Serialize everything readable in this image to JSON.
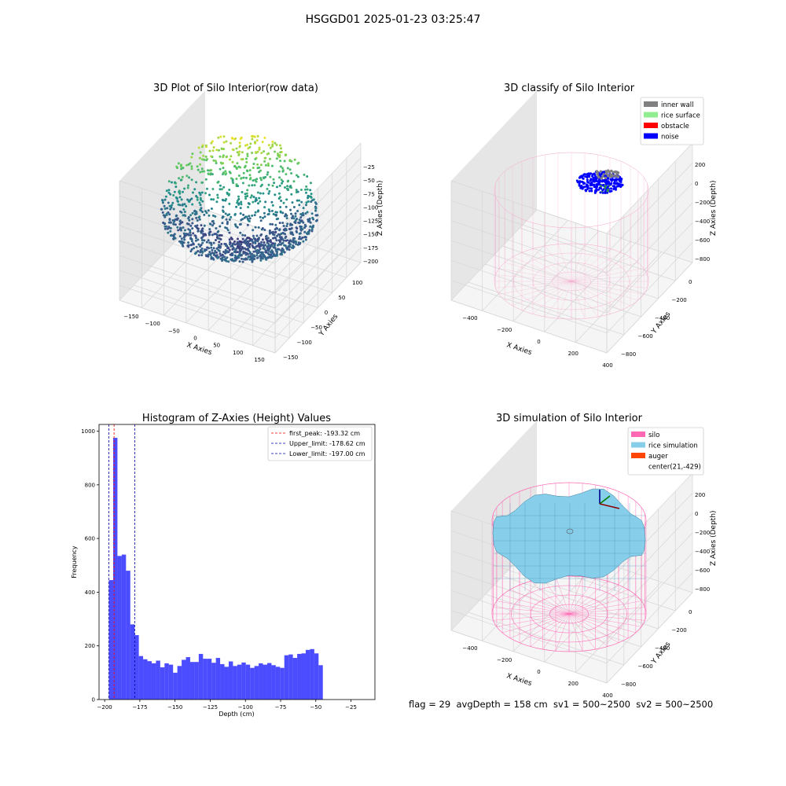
{
  "figure": {
    "suptitle": "HSGGD01 2025-01-23 03:25:47",
    "footer": "flag = 29  avgDepth = 158 cm  sv1 = 500~2500  sv2 = 500~2500"
  },
  "chart_data": [
    {
      "type": "scatter",
      "subtype": "3d-scatter",
      "title": "3D Plot of Silo Interior(row data)",
      "xlabel": "X Axies",
      "ylabel": "Y Axies",
      "zlabel": "Z Axies (Depth)",
      "xticks": [
        "−150",
        "−100",
        "−50",
        "0",
        "50",
        "100",
        "150"
      ],
      "yticks": [
        "−150",
        "−100",
        "−50",
        "0",
        "50",
        "100"
      ],
      "zticks": [
        "−25",
        "−50",
        "−75",
        "−100",
        "−125",
        "−150",
        "−175",
        "−200"
      ],
      "xlim": [
        -170,
        170
      ],
      "ylim": [
        -170,
        110
      ],
      "zlim": [
        -210,
        -15
      ],
      "colormap": "viridis"
    },
    {
      "type": "scatter",
      "subtype": "3d-classification",
      "title": "3D classify of Silo Interior",
      "xlabel": "X Axies",
      "ylabel": "Y Axies",
      "zlabel": "Z Axies (Depth)",
      "xticks": [
        "−400",
        "−200",
        "0",
        "200",
        "400"
      ],
      "yticks": [
        "0",
        "−200",
        "−400",
        "−600",
        "−800"
      ],
      "zticks": [
        "200",
        "0",
        "−200",
        "−400",
        "−600",
        "−800"
      ],
      "legend_position": "top-right",
      "legend": [
        {
          "label": "inner wall",
          "color": "#808080"
        },
        {
          "label": "rice surface",
          "color": "#90ee90"
        },
        {
          "label": "obstacle",
          "color": "#ff0000"
        },
        {
          "label": "noise",
          "color": "#0000ff"
        }
      ]
    },
    {
      "type": "bar",
      "subtype": "histogram",
      "title": "Histogram of Z-Axies (Height) Values",
      "xlabel": "Depth (cm)",
      "ylabel": "Frequency",
      "xlim": [
        -204,
        -8
      ],
      "ylim": [
        0,
        1025
      ],
      "xticks": [
        -200,
        -175,
        -150,
        -125,
        -100,
        -75,
        -50,
        -25
      ],
      "yticks": [
        0,
        200,
        400,
        600,
        800,
        1000
      ],
      "bar_color": "#0000ff",
      "bin_start": -197,
      "bin_width": 3.04,
      "values": [
        445,
        975,
        535,
        540,
        480,
        280,
        240,
        162,
        150,
        143,
        135,
        145,
        120,
        135,
        130,
        100,
        125,
        148,
        158,
        140,
        140,
        170,
        152,
        152,
        137,
        155,
        132,
        122,
        142,
        125,
        130,
        138,
        130,
        118,
        125,
        135,
        130,
        136,
        128,
        122,
        118,
        165,
        168,
        155,
        170,
        172,
        185,
        188,
        172,
        128
      ],
      "lines": [
        {
          "label": "first_peak: -193.32 cm",
          "x": -193.32,
          "color": "#ff0000"
        },
        {
          "label": "Upper_limit: -178.62 cm",
          "x": -178.62,
          "color": "#0000aa"
        },
        {
          "label": "Lower_limit: -197.00 cm",
          "x": -197.0,
          "color": "#0000aa"
        }
      ],
      "legend_position": "top-right"
    },
    {
      "type": "area",
      "subtype": "3d-surface",
      "title": "3D simulation of Silo Interior",
      "xlabel": "X Axies",
      "ylabel": "Y Axies",
      "zlabel": "Z Axies (Depth)",
      "xticks": [
        "−400",
        "−200",
        "0",
        "200",
        "400"
      ],
      "yticks": [
        "0",
        "−200",
        "−400",
        "−600",
        "−800"
      ],
      "zticks": [
        "200",
        "0",
        "−200",
        "−400",
        "−600",
        "−800"
      ],
      "legend_position": "top-right",
      "legend": [
        {
          "label": "silo",
          "color": "#ff69b4"
        },
        {
          "label": "rice simulation",
          "color": "#87ceeb"
        },
        {
          "label": "auger",
          "color": "#ff4500"
        },
        {
          "label": "center(21,-429)",
          "color": ""
        }
      ]
    }
  ]
}
